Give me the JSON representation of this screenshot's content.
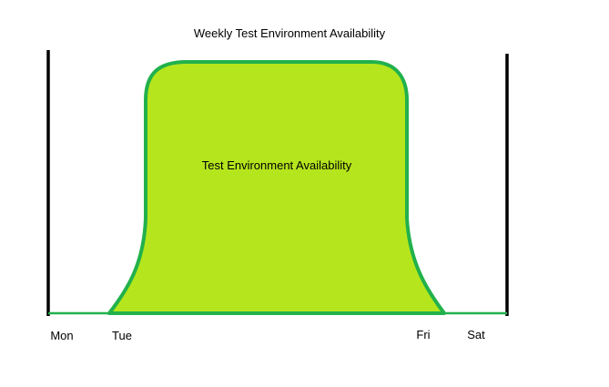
{
  "title": "Weekly Test Environment Availability",
  "area_label": "Test Environment Availability",
  "day_labels": {
    "mon": "Mon",
    "tue": "Tue",
    "fri": "Fri",
    "sat": "Sat"
  },
  "colors": {
    "background": "#ffffff",
    "axis": "#000000",
    "area_fill": "#b5e61d",
    "area_stroke": "#22b14c",
    "text": "#000000"
  }
}
